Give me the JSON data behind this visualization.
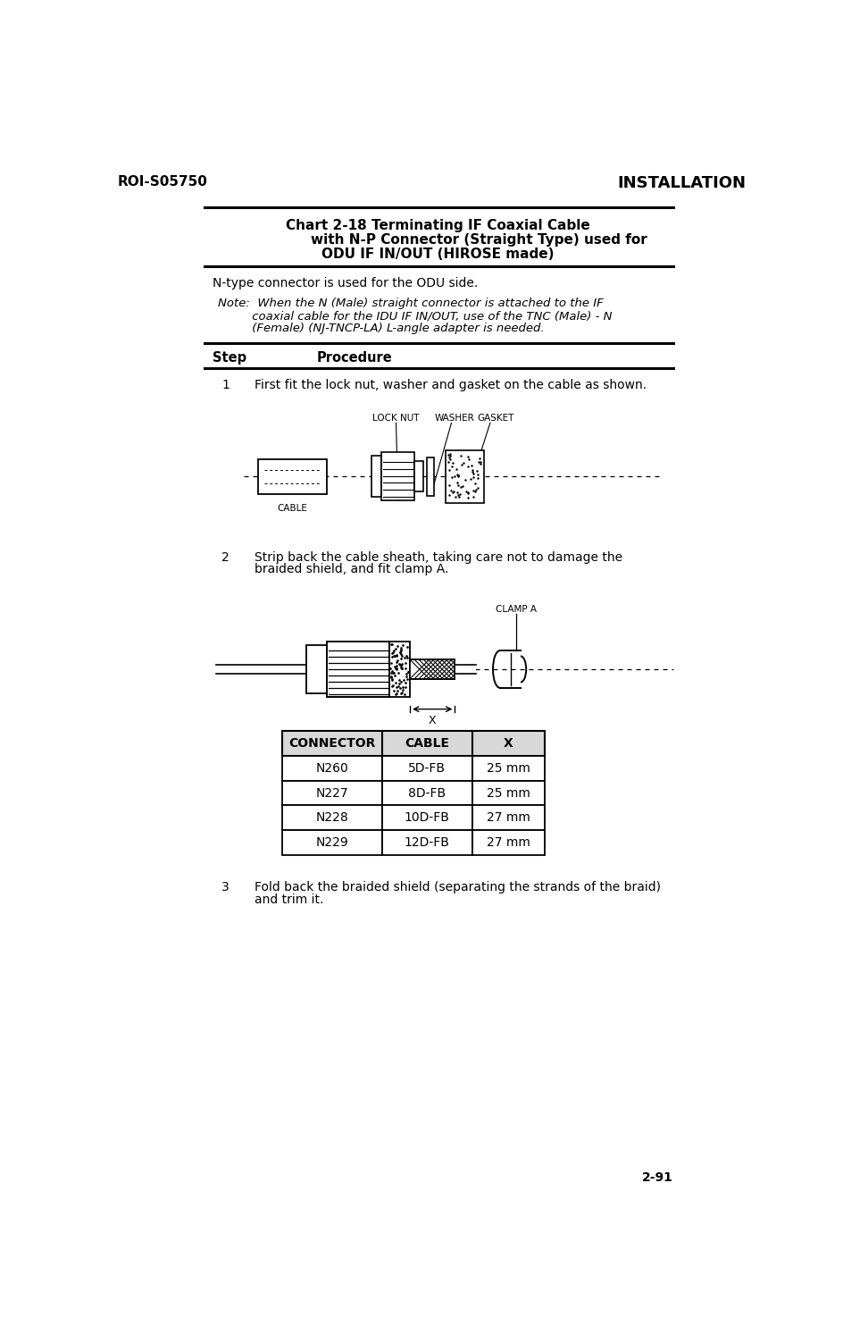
{
  "page_id": "ROI-S05750",
  "page_title": "INSTALLATION",
  "page_num": "2-91",
  "chart_title_line1": "Chart 2-18 Terminating IF Coaxial Cable",
  "chart_title_line2": "with N-P Connector (Straight Type) used for",
  "chart_title_line3": "ODU IF IN/OUT (HIROSE made)",
  "intro_text": "N-type connector is used for the ODU side.",
  "note_line1": "Note:  When the N (Male) straight connector is attached to the IF",
  "note_line2": "         coaxial cable for the IDU IF IN/OUT, use of the TNC (Male) - N",
  "note_line3": "         (Female) (NJ-TNCP-LA) L-angle adapter is needed.",
  "step_header": "Step",
  "procedure_header": "Procedure",
  "step1_num": "1",
  "step1_text": "First fit the lock nut, washer and gasket on the cable as shown.",
  "step2_num": "2",
  "step2_line1": "Strip back the cable sheath, taking care not to damage the",
  "step2_line2": "braided shield, and fit clamp A.",
  "step3_num": "3",
  "step3_line1": "Fold back the braided shield (separating the strands of the braid)",
  "step3_line2": "and trim it.",
  "table_headers": [
    "CONNECTOR",
    "CABLE",
    "X"
  ],
  "table_rows": [
    [
      "N260",
      "5D-FB",
      "25 mm"
    ],
    [
      "N227",
      "8D-FB",
      "25 mm"
    ],
    [
      "N228",
      "10D-FB",
      "27 mm"
    ],
    [
      "N229",
      "12D-FB",
      "27 mm"
    ]
  ],
  "bg_color": "#ffffff",
  "text_color": "#000000",
  "line_color": "#000000"
}
